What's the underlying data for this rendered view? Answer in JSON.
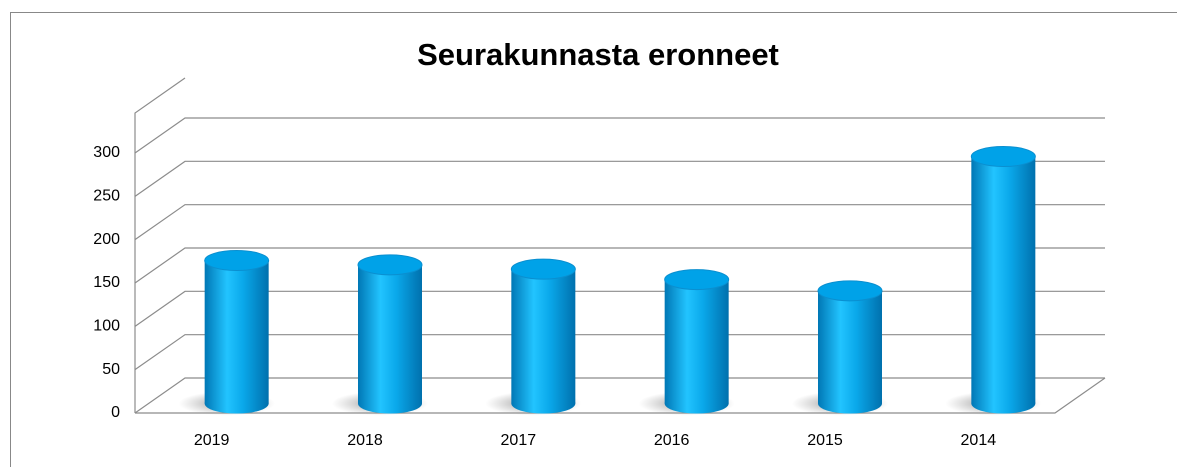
{
  "chart_data": {
    "type": "bar",
    "title": "Seurakunnasta eronneet",
    "categories": [
      "2019",
      "2018",
      "2017",
      "2016",
      "2015",
      "2014"
    ],
    "values": [
      165,
      160,
      155,
      143,
      130,
      285
    ],
    "color": "#00a2e8",
    "ylim": [
      0,
      300
    ],
    "yticks": [
      0,
      50,
      100,
      150,
      200,
      250,
      300
    ],
    "grid": true
  }
}
